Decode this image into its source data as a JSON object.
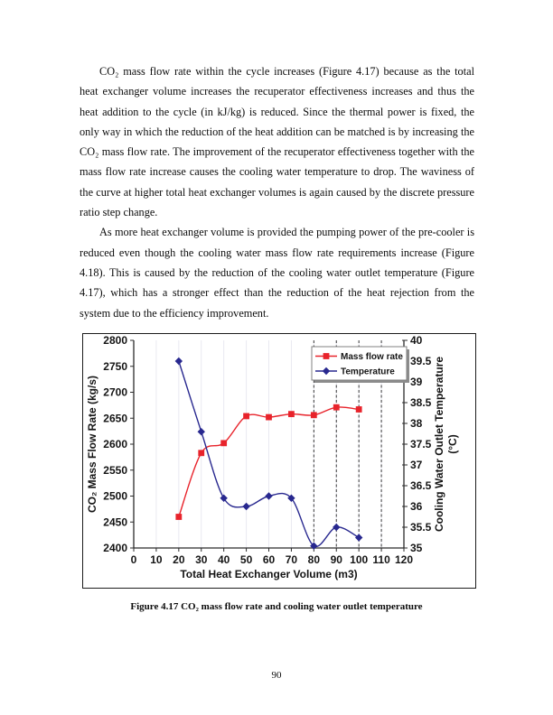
{
  "document": {
    "paragraphs": [
      "CO₂ mass flow rate within the cycle increases (Figure 4.17) because as the total heat exchanger volume increases the recuperator effectiveness increases and thus the heat addition to the cycle (in kJ/kg) is reduced.  Since the thermal power is fixed, the only way in which the reduction of the heat addition can be matched is by increasing the CO₂ mass flow rate.  The improvement of the recuperator effectiveness together with the mass flow rate increase causes the cooling water temperature to drop.  The waviness of the curve at higher total heat exchanger volumes is again caused by the discrete pressure ratio step change.",
      "As more heat exchanger volume is provided the pumping power of the pre-cooler is reduced even though the cooling water mass flow rate requirements increase (Figure 4.18).  This is caused by the reduction of the cooling water outlet temperature (Figure 4.17), which has a stronger effect than the reduction of the heat rejection from the system due to the efficiency improvement."
    ],
    "caption": "Figure 4.17 CO₂ mass flow rate and cooling water outlet temperature",
    "page_number": "90"
  },
  "chart_data": {
    "type": "line",
    "title": "",
    "xlabel": "Total Heat Exchanger Volume (m3)",
    "ylabel_left": "CO₂ Mass Flow Rate (kg/s)",
    "ylabel_right_lines": [
      "Cooling Water Outlet Temperature",
      "(°C)"
    ],
    "xlim": [
      0,
      120
    ],
    "xticks": [
      "0",
      "10",
      "20",
      "30",
      "40",
      "50",
      "60",
      "70",
      "80",
      "90",
      "100",
      "110",
      "120"
    ],
    "ylim_left": [
      2400,
      2800
    ],
    "yticks_left": [
      "2400",
      "2450",
      "2500",
      "2550",
      "2600",
      "2650",
      "2700",
      "2750",
      "2800"
    ],
    "ylim_right": [
      35,
      40
    ],
    "yticks_right": [
      "35",
      "35.5",
      "36",
      "36.5",
      "37",
      "37.5",
      "38",
      "38.5",
      "39",
      "39.5",
      "40"
    ],
    "x": [
      20,
      30,
      40,
      50,
      60,
      70,
      80,
      90,
      100
    ],
    "series": [
      {
        "name": "Mass flow rate",
        "axis": "left",
        "color": "#e8232b",
        "marker": "square",
        "values": [
          2460,
          2583,
          2602,
          2654,
          2652,
          2658,
          2656,
          2671,
          2667
        ]
      },
      {
        "name": "Temperature",
        "axis": "right",
        "color": "#28288f",
        "marker": "diamond",
        "values": [
          39.5,
          37.8,
          36.2,
          36.0,
          36.25,
          36.2,
          35.05,
          35.5,
          35.25
        ]
      }
    ],
    "dashed_vlines": [
      80,
      90,
      100,
      110
    ],
    "light_vlines": [
      10,
      20,
      30,
      40,
      50,
      60,
      70,
      80,
      90,
      100,
      110
    ],
    "legend": {
      "position": "top-right",
      "entries": [
        "Mass flow rate",
        "Temperature"
      ]
    },
    "gridlines_horizontal": false,
    "colors": {
      "axis": "#2b2b2b",
      "dashed_vline": "#3a3a3a",
      "light_gridline": "#e9e9f1",
      "legend_border": "#808080",
      "legend_shadow": "#8c8c8c"
    }
  }
}
